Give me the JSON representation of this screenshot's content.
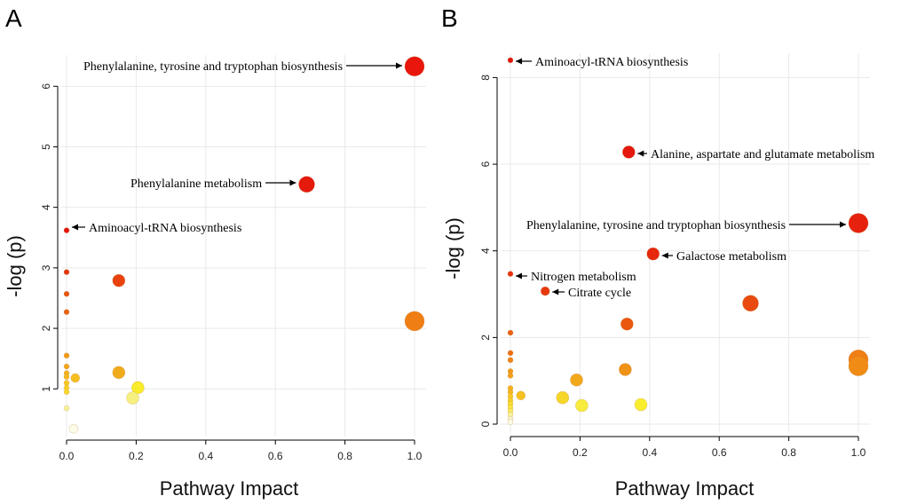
{
  "chart_data": [
    {
      "panel": "A",
      "type": "scatter",
      "xlabel": "Pathway Impact",
      "ylabel": "-log (p)",
      "xlim": [
        0,
        1.0
      ],
      "ylim": [
        0.3,
        6.4
      ],
      "x_ticks": [
        "0.0",
        "0.2",
        "0.4",
        "0.6",
        "0.8",
        "1.0"
      ],
      "y_ticks": [
        "1",
        "2",
        "3",
        "4",
        "5",
        "6"
      ],
      "points": [
        {
          "x": 1.0,
          "y": 6.33,
          "size": 5,
          "color": "#e8160c",
          "label": "Phenylalanine, tyrosine and tryptophan biosynthesis"
        },
        {
          "x": 0.69,
          "y": 4.38,
          "size": 4,
          "color": "#e41a0d",
          "label": "Phenylalanine metabolism"
        },
        {
          "x": 0.0,
          "y": 3.62,
          "size": 1,
          "color": "#e2160c",
          "label": "Aminoacyl-tRNA biosynthesis"
        },
        {
          "x": 0.0,
          "y": 2.93,
          "size": 1,
          "color": "#e6360d",
          "label": ""
        },
        {
          "x": 0.15,
          "y": 2.79,
          "size": 3,
          "color": "#e8420f",
          "label": ""
        },
        {
          "x": 0.0,
          "y": 2.57,
          "size": 1,
          "color": "#e9540f",
          "label": ""
        },
        {
          "x": 0.0,
          "y": 2.27,
          "size": 1,
          "color": "#eb6210",
          "label": ""
        },
        {
          "x": 1.0,
          "y": 2.12,
          "size": 5,
          "color": "#ef7e14",
          "label": ""
        },
        {
          "x": 0.0,
          "y": 1.55,
          "size": 1,
          "color": "#f19a17",
          "label": ""
        },
        {
          "x": 0.0,
          "y": 1.37,
          "size": 1,
          "color": "#f2a519",
          "label": ""
        },
        {
          "x": 0.15,
          "y": 1.27,
          "size": 3,
          "color": "#f0ab1c",
          "label": ""
        },
        {
          "x": 0.0,
          "y": 1.26,
          "size": 1,
          "color": "#f4b11c",
          "label": ""
        },
        {
          "x": 0.0,
          "y": 1.2,
          "size": 1,
          "color": "#f5b81e",
          "label": ""
        },
        {
          "x": 0.025,
          "y": 1.18,
          "size": 2,
          "color": "#f6be20",
          "label": ""
        },
        {
          "x": 0.0,
          "y": 1.1,
          "size": 1,
          "color": "#f7c823",
          "label": ""
        },
        {
          "x": 0.0,
          "y": 1.02,
          "size": 1,
          "color": "#f8d128",
          "label": ""
        },
        {
          "x": 0.205,
          "y": 1.02,
          "size": 3,
          "color": "#f8ec2c",
          "label": ""
        },
        {
          "x": 0.0,
          "y": 0.95,
          "size": 1,
          "color": "#f9d82c",
          "label": ""
        },
        {
          "x": 0.19,
          "y": 0.85,
          "size": 3,
          "color": "#f6f080",
          "label": ""
        },
        {
          "x": 0.0,
          "y": 0.68,
          "size": 1,
          "color": "#f6f29a",
          "label": ""
        },
        {
          "x": 0.02,
          "y": 0.34,
          "size": 2,
          "color": "#fbfbe6",
          "label": ""
        }
      ]
    },
    {
      "panel": "B",
      "type": "scatter",
      "xlabel": "Pathway Impact",
      "ylabel": "-log (p)",
      "xlim": [
        0,
        1.0
      ],
      "ylim": [
        0,
        8.5
      ],
      "x_ticks": [
        "0.0",
        "0.2",
        "0.4",
        "0.6",
        "0.8",
        "1.0"
      ],
      "y_ticks": [
        "0",
        "2",
        "4",
        "6",
        "8"
      ],
      "points": [
        {
          "x": 0.0,
          "y": 8.4,
          "size": 1,
          "color": "#e2160c",
          "label": "Aminoacyl-tRNA biosynthesis"
        },
        {
          "x": 0.34,
          "y": 6.28,
          "size": 3,
          "color": "#e4180c",
          "label": "Alanine, aspartate and glutamate metabolism"
        },
        {
          "x": 1.0,
          "y": 4.64,
          "size": 5,
          "color": "#e6210d",
          "label": "Phenylalanine, tyrosine and tryptophan biosynthesis"
        },
        {
          "x": 0.41,
          "y": 3.93,
          "size": 3,
          "color": "#e6280d",
          "label": "Galactose metabolism"
        },
        {
          "x": 0.0,
          "y": 3.47,
          "size": 1,
          "color": "#e6300d",
          "label": "Nitrogen metabolism"
        },
        {
          "x": 0.1,
          "y": 3.07,
          "size": 2,
          "color": "#e7380e",
          "label": "Citrate cycle"
        },
        {
          "x": 0.69,
          "y": 2.79,
          "size": 4,
          "color": "#e84a10",
          "label": ""
        },
        {
          "x": 0.335,
          "y": 2.31,
          "size": 3,
          "color": "#ea5810",
          "label": ""
        },
        {
          "x": 0.0,
          "y": 2.11,
          "size": 1,
          "color": "#eb6210",
          "label": ""
        },
        {
          "x": 0.0,
          "y": 1.64,
          "size": 1,
          "color": "#ed6f12",
          "label": ""
        },
        {
          "x": 1.0,
          "y": 1.49,
          "size": 5,
          "color": "#ef7e14",
          "label": ""
        },
        {
          "x": 0.0,
          "y": 1.48,
          "size": 1,
          "color": "#ef8314",
          "label": ""
        },
        {
          "x": 1.0,
          "y": 1.34,
          "size": 5,
          "color": "#f08c15",
          "label": ""
        },
        {
          "x": 0.33,
          "y": 1.26,
          "size": 3,
          "color": "#f09217",
          "label": ""
        },
        {
          "x": 0.0,
          "y": 1.22,
          "size": 1,
          "color": "#f19a17",
          "label": ""
        },
        {
          "x": 0.0,
          "y": 1.12,
          "size": 1,
          "color": "#f2a019",
          "label": ""
        },
        {
          "x": 0.19,
          "y": 1.02,
          "size": 3,
          "color": "#f1a81b",
          "label": ""
        },
        {
          "x": 0.0,
          "y": 0.83,
          "size": 1,
          "color": "#f4b11c",
          "label": ""
        },
        {
          "x": 0.0,
          "y": 0.74,
          "size": 1,
          "color": "#f5b81e",
          "label": ""
        },
        {
          "x": 0.03,
          "y": 0.66,
          "size": 2,
          "color": "#f6c021",
          "label": ""
        },
        {
          "x": 0.0,
          "y": 0.64,
          "size": 1,
          "color": "#f7c823",
          "label": ""
        },
        {
          "x": 0.15,
          "y": 0.61,
          "size": 3,
          "color": "#f6d628",
          "label": ""
        },
        {
          "x": 0.0,
          "y": 0.55,
          "size": 1,
          "color": "#f8d128",
          "label": ""
        },
        {
          "x": 0.0,
          "y": 0.47,
          "size": 1,
          "color": "#f9dc2c",
          "label": ""
        },
        {
          "x": 0.375,
          "y": 0.45,
          "size": 3,
          "color": "#f8ee2e",
          "label": ""
        },
        {
          "x": 0.205,
          "y": 0.43,
          "size": 3,
          "color": "#f7ec3c",
          "label": ""
        },
        {
          "x": 0.0,
          "y": 0.38,
          "size": 1,
          "color": "#f9e43a",
          "label": ""
        },
        {
          "x": 0.0,
          "y": 0.3,
          "size": 1,
          "color": "#f8ec60",
          "label": ""
        },
        {
          "x": 0.0,
          "y": 0.22,
          "size": 1,
          "color": "#f6f29a",
          "label": ""
        },
        {
          "x": 0.0,
          "y": 0.12,
          "size": 1,
          "color": "#f6f4c8",
          "label": ""
        },
        {
          "x": 0.0,
          "y": 0.05,
          "size": 1,
          "color": "#fbfbe6",
          "label": ""
        }
      ]
    }
  ]
}
